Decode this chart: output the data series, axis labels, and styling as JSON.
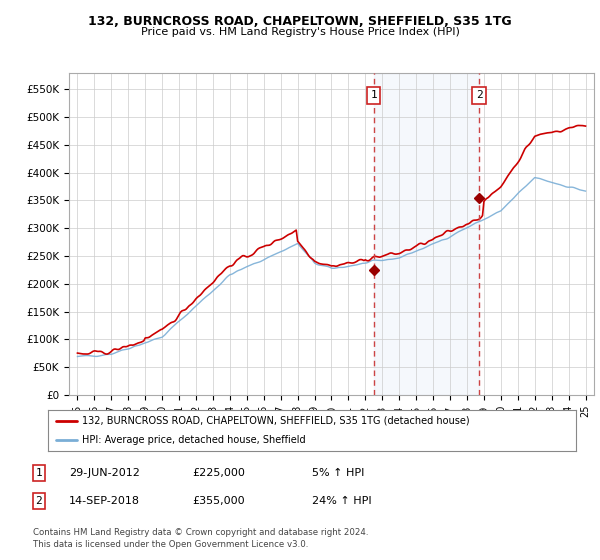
{
  "title": "132, BURNCROSS ROAD, CHAPELTOWN, SHEFFIELD, S35 1TG",
  "subtitle": "Price paid vs. HM Land Registry's House Price Index (HPI)",
  "ylabel_ticks": [
    "£0",
    "£50K",
    "£100K",
    "£150K",
    "£200K",
    "£250K",
    "£300K",
    "£350K",
    "£400K",
    "£450K",
    "£500K",
    "£550K"
  ],
  "ytick_values": [
    0,
    50000,
    100000,
    150000,
    200000,
    250000,
    300000,
    350000,
    400000,
    450000,
    500000,
    550000
  ],
  "ylim": [
    0,
    580000
  ],
  "xlim_start": 1994.5,
  "xlim_end": 2025.5,
  "plot_bg": "#ffffff",
  "red_color": "#cc0000",
  "blue_color": "#7aaed6",
  "vline1_x": 2012.49,
  "vline2_x": 2018.71,
  "marker1_x": 2012.49,
  "marker1_y": 225000,
  "marker2_x": 2018.71,
  "marker2_y": 355000,
  "legend_red": "132, BURNCROSS ROAD, CHAPELTOWN, SHEFFIELD, S35 1TG (detached house)",
  "legend_blue": "HPI: Average price, detached house, Sheffield",
  "ann1_label": "1",
  "ann2_label": "2",
  "table_row1": [
    "1",
    "29-JUN-2012",
    "£225,000",
    "5% ↑ HPI"
  ],
  "table_row2": [
    "2",
    "14-SEP-2018",
    "£355,000",
    "24% ↑ HPI"
  ],
  "footer": "Contains HM Land Registry data © Crown copyright and database right 2024.\nThis data is licensed under the Open Government Licence v3.0.",
  "xtick_years": [
    1995,
    1996,
    1997,
    1998,
    1999,
    2000,
    2001,
    2002,
    2003,
    2004,
    2005,
    2006,
    2007,
    2008,
    2009,
    2010,
    2011,
    2012,
    2013,
    2014,
    2015,
    2016,
    2017,
    2018,
    2019,
    2020,
    2021,
    2022,
    2023,
    2024,
    2025
  ]
}
